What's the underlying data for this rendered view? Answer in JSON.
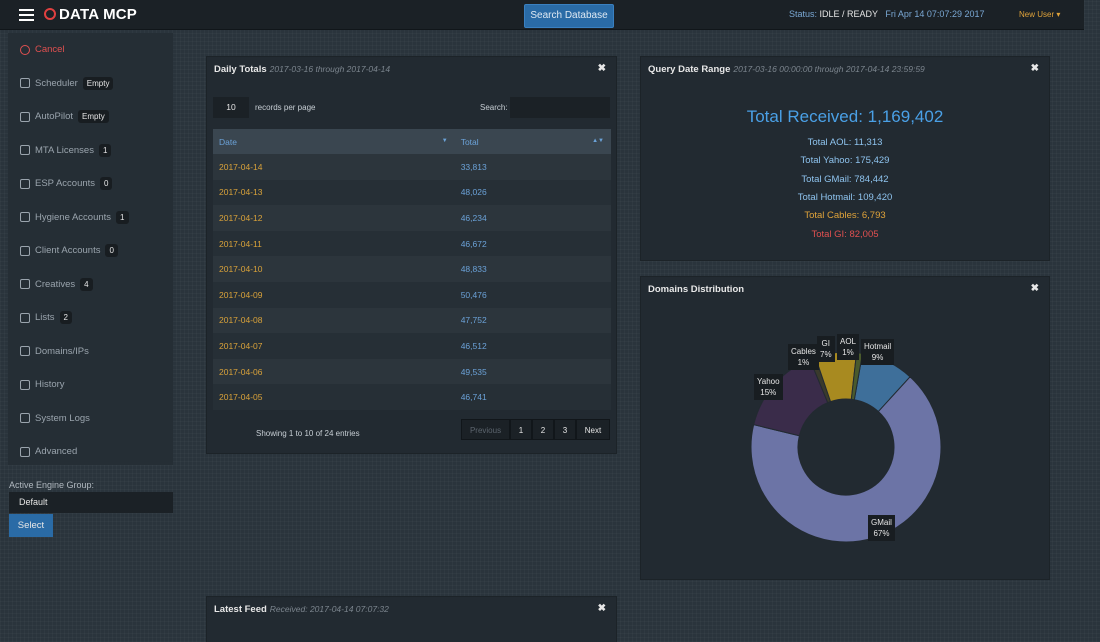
{
  "app": {
    "logo_bold": "DATA",
    "logo_thin": "MCP",
    "search_button": "Search Database",
    "status_label": "Status:",
    "status_value": "IDLE / READY",
    "datetime": "Fri Apr 14 07:07:29 2017",
    "user": "New User"
  },
  "sidebar": {
    "items": [
      {
        "label": "Cancel",
        "badge": ""
      },
      {
        "label": "Scheduler",
        "badge": "Empty"
      },
      {
        "label": "AutoPilot",
        "badge": "Empty"
      },
      {
        "label": "MTA Licenses",
        "badge": "1"
      },
      {
        "label": "ESP Accounts",
        "badge": "0"
      },
      {
        "label": "Hygiene Accounts",
        "badge": "1"
      },
      {
        "label": "Client Accounts",
        "badge": "0"
      },
      {
        "label": "Creatives",
        "badge": "4"
      },
      {
        "label": "Lists",
        "badge": "2"
      },
      {
        "label": "Domains/IPs",
        "badge": ""
      },
      {
        "label": "History",
        "badge": ""
      },
      {
        "label": "System Logs",
        "badge": ""
      },
      {
        "label": "Advanced",
        "badge": ""
      }
    ],
    "engine_label": "Active Engine Group:",
    "engine_value": "Default",
    "select_button": "Select"
  },
  "daily_totals": {
    "title": "Daily Totals",
    "range": "2017-03-16 through 2017-04-14",
    "records_per_page": "10",
    "records_label": "records per page",
    "search_label": "Search:",
    "col_date": "Date",
    "col_total": "Total",
    "rows": [
      {
        "date": "2017-04-14",
        "total": "33,813"
      },
      {
        "date": "2017-04-13",
        "total": "48,026"
      },
      {
        "date": "2017-04-12",
        "total": "46,234"
      },
      {
        "date": "2017-04-11",
        "total": "46,672"
      },
      {
        "date": "2017-04-10",
        "total": "48,833"
      },
      {
        "date": "2017-04-09",
        "total": "50,476"
      },
      {
        "date": "2017-04-08",
        "total": "47,752"
      },
      {
        "date": "2017-04-07",
        "total": "46,512"
      },
      {
        "date": "2017-04-06",
        "total": "49,535"
      },
      {
        "date": "2017-04-05",
        "total": "46,741"
      }
    ],
    "showing": "Showing 1 to 10 of 24 entries",
    "pager": {
      "prev": "Previous",
      "p1": "1",
      "p2": "2",
      "p3": "3",
      "next": "Next"
    }
  },
  "query_range": {
    "title": "Query Date Range",
    "range": "2017-03-16 00:00:00 through 2017-04-14 23:59:59",
    "total_received": "Total Received: 1,169,402",
    "lines": [
      {
        "text": "Total AOL: 11,313",
        "color": "#8ec3ee"
      },
      {
        "text": "Total Yahoo: 175,429",
        "color": "#8ec3ee"
      },
      {
        "text": "Total GMail: 784,442",
        "color": "#8ec3ee"
      },
      {
        "text": "Total Hotmail: 109,420",
        "color": "#8ec3ee"
      },
      {
        "text": "Total Cables: 6,793",
        "color": "#e0a33a"
      },
      {
        "text": "Total GI: 82,005",
        "color": "#e05050"
      }
    ]
  },
  "domains": {
    "title": "Domains Distribution"
  },
  "chart_data": {
    "type": "pie",
    "categories": [
      "Hotmail",
      "GMail",
      "Yahoo",
      "Cables",
      "GI",
      "AOL"
    ],
    "values": [
      9,
      67,
      15,
      1,
      7,
      1
    ],
    "labels": [
      {
        "name": "Hotmail",
        "pct": "9%"
      },
      {
        "name": "GMail",
        "pct": "67%"
      },
      {
        "name": "Yahoo",
        "pct": "15%"
      },
      {
        "name": "Cables",
        "pct": "1%"
      },
      {
        "name": "GI",
        "pct": "7%"
      },
      {
        "name": "AOL",
        "pct": "1%"
      }
    ],
    "colors": [
      "#3e6f9a",
      "#6c74a6",
      "#3a2c4a",
      "#3a3a2c",
      "#a88a20",
      "#4a5a2c"
    ]
  },
  "latest_feed": {
    "title": "Latest Feed",
    "received": "Received: 2017-04-14 07:07:32"
  }
}
